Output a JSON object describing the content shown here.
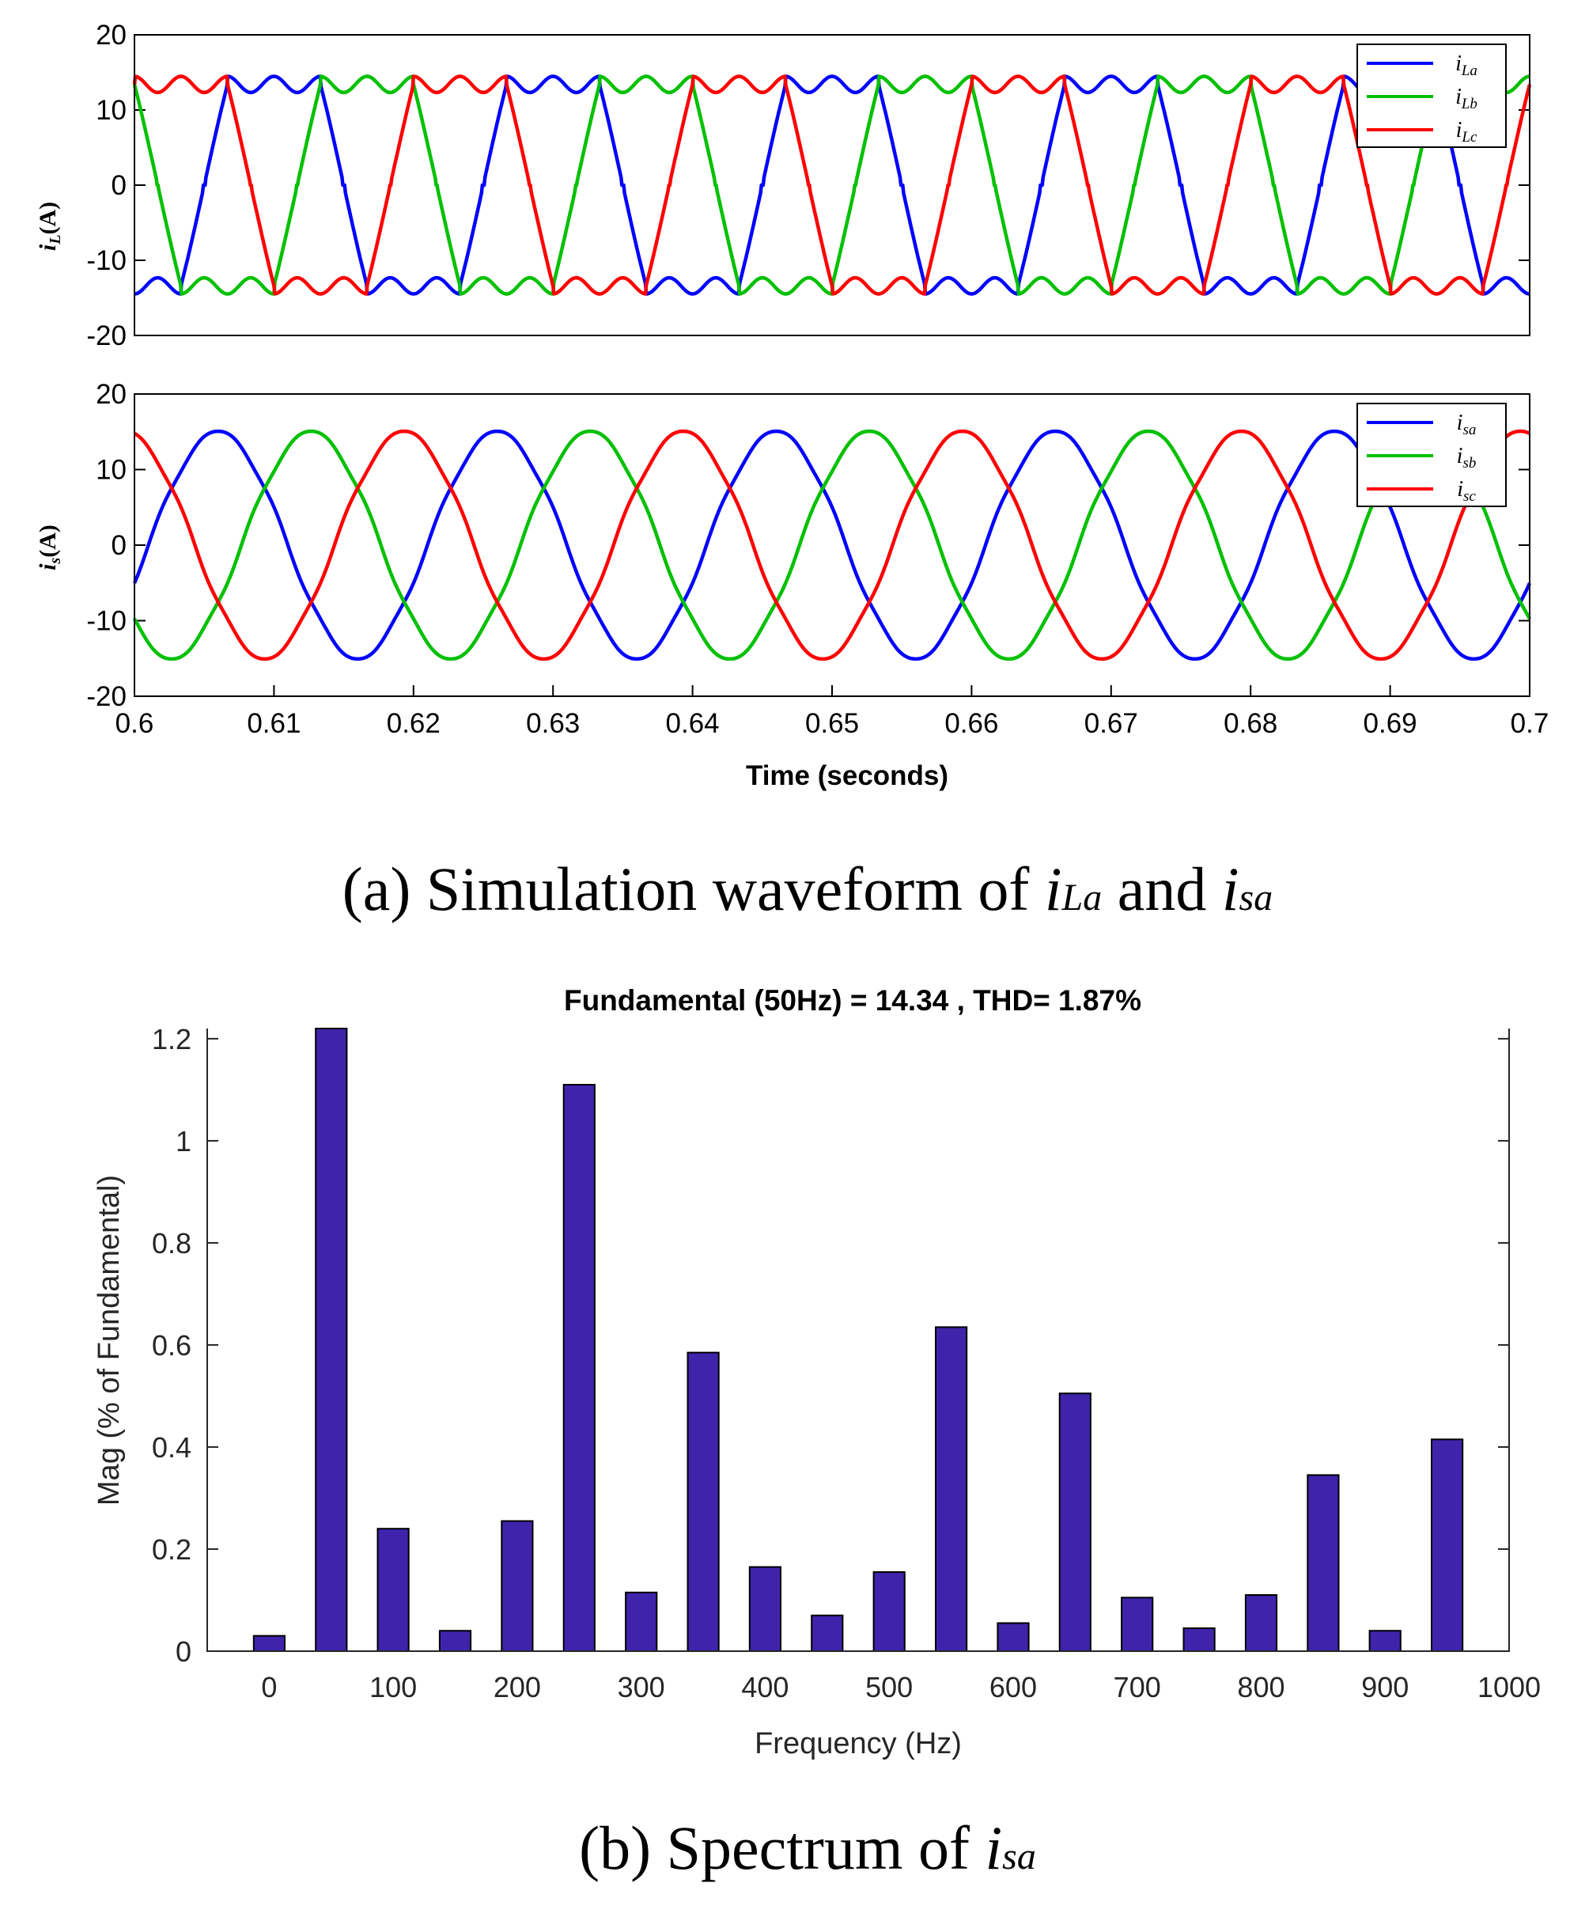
{
  "captions": {
    "a_prefix": "(a) Simulation waveform of ",
    "a_var1": "i",
    "a_var1_sub": "La",
    "a_mid": " and ",
    "a_var2": "i",
    "a_var2_sub": "sa",
    "b_prefix": "(b) Spectrum of ",
    "b_var": "i",
    "b_var_sub": "sa"
  },
  "chart_data": [
    {
      "type": "line",
      "ylabel_main": "i",
      "ylabel_sub": "L",
      "ylabel_unit": "(A)",
      "xlim": [
        0.6,
        0.7
      ],
      "ylim": [
        -20,
        20
      ],
      "yticks": [
        "20",
        "10",
        "0",
        "-10",
        "-20"
      ],
      "series": [
        {
          "name": "i",
          "sub": "La",
          "color": "#0000ff",
          "shape": "load_current",
          "amplitude": 13.4,
          "frequency_hz": 50,
          "phase_deg": -90
        },
        {
          "name": "i",
          "sub": "Lb",
          "color": "#00c000",
          "shape": "load_current",
          "amplitude": 13.4,
          "frequency_hz": 50,
          "phase_deg": -210
        },
        {
          "name": "i",
          "sub": "Lc",
          "color": "#ff0000",
          "shape": "load_current",
          "amplitude": 13.4,
          "frequency_hz": 50,
          "phase_deg": 30
        }
      ],
      "legend_position": "top-right"
    },
    {
      "type": "line",
      "ylabel_main": "i",
      "ylabel_sub": "s",
      "ylabel_unit": "(A)",
      "xlim": [
        0.6,
        0.7
      ],
      "ylim": [
        -20,
        20
      ],
      "yticks": [
        "20",
        "10",
        "0",
        "-10",
        "-20"
      ],
      "xticks": [
        "0.6",
        "0.61",
        "0.62",
        "0.63",
        "0.64",
        "0.65",
        "0.66",
        "0.67",
        "0.68",
        "0.69",
        "0.7"
      ],
      "xlabel": "Time (seconds)",
      "series": [
        {
          "name": "i",
          "sub": "sa",
          "color": "#0000ff",
          "shape": "sine",
          "amplitude": 15.0,
          "frequency_hz": 50,
          "phase_deg": -18
        },
        {
          "name": "i",
          "sub": "sb",
          "color": "#00c000",
          "shape": "sine",
          "amplitude": 15.0,
          "frequency_hz": 50,
          "phase_deg": -138
        },
        {
          "name": "i",
          "sub": "sc",
          "color": "#ff0000",
          "shape": "sine",
          "amplitude": 15.0,
          "frequency_hz": 50,
          "phase_deg": 102
        }
      ],
      "legend_position": "top-right"
    },
    {
      "type": "bar",
      "title": "Fundamental (50Hz) = 14.34 , THD= 1.87%",
      "xlabel": "Frequency (Hz)",
      "ylabel": "Mag (% of Fundamental)",
      "xlim": [
        -50,
        1000
      ],
      "ylim": [
        0,
        1.22
      ],
      "xticks": [
        "0",
        "100",
        "200",
        "300",
        "400",
        "500",
        "600",
        "700",
        "800",
        "900",
        "1000"
      ],
      "yticks": [
        "0",
        "0.2",
        "0.4",
        "0.6",
        "0.8",
        "1",
        "1.2"
      ],
      "bar_color": "#3f24ab",
      "x": [
        0,
        50,
        100,
        150,
        200,
        250,
        300,
        350,
        400,
        450,
        500,
        550,
        600,
        650,
        700,
        750,
        800,
        850,
        900,
        950
      ],
      "values": [
        0.03,
        1.22,
        0.24,
        0.04,
        0.255,
        1.11,
        0.115,
        0.585,
        0.165,
        0.07,
        0.155,
        0.635,
        0.055,
        0.505,
        0.105,
        0.045,
        0.11,
        0.345,
        0.04,
        0.415
      ]
    }
  ]
}
